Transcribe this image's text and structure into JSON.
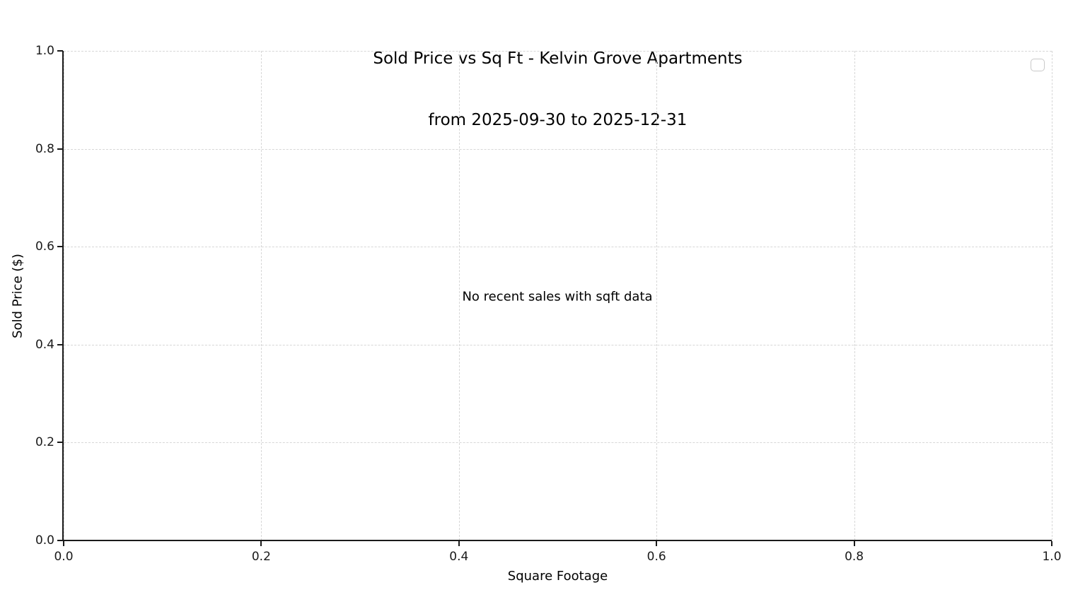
{
  "chart_data": {
    "type": "scatter",
    "title_line1": "Sold Price vs Sq Ft - Kelvin Grove Apartments",
    "title_line2": "from 2025-09-30 to 2025-12-31",
    "xlabel": "Square Footage",
    "ylabel": "Sold Price ($)",
    "xlim": [
      0.0,
      1.0
    ],
    "ylim": [
      0.0,
      1.0
    ],
    "xticks": [
      0.0,
      0.2,
      0.4,
      0.6,
      0.8,
      1.0
    ],
    "yticks": [
      0.0,
      0.2,
      0.4,
      0.6,
      0.8,
      1.0
    ],
    "xtick_labels": [
      "0.0",
      "0.2",
      "0.4",
      "0.6",
      "0.8",
      "1.0"
    ],
    "ytick_labels": [
      "0.0",
      "0.2",
      "0.4",
      "0.6",
      "0.8",
      "1.0"
    ],
    "series": [],
    "points": [],
    "annotation": "No recent sales with sqft data",
    "grid": true,
    "grid_style": "dashed",
    "legend": {
      "visible": true,
      "entries": [],
      "position": "upper right"
    },
    "colors": {
      "background": "#ffffff",
      "grid": "#d7d7d7",
      "spine": "#1a1a1a",
      "text": "#000000",
      "legend_border": "#c9c9c9"
    }
  }
}
